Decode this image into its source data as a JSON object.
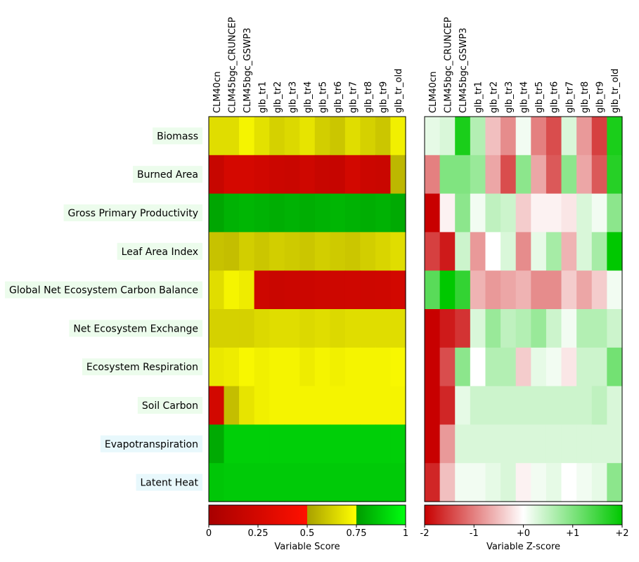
{
  "chart_data": [
    {
      "type": "heatmap",
      "title": "",
      "models": [
        "CLM40cn",
        "CLM45bgc_CRUNCEP",
        "CLM45bgc_GSWP3",
        "glb_tr1",
        "glb_tr2",
        "glb_tr3",
        "glb_tr4",
        "glb_tr5",
        "glb_tr6",
        "glb_tr7",
        "glb_tr8",
        "glb_tr9",
        "glb_tr_old"
      ],
      "variables": [
        "Biomass",
        "Burned Area",
        "Gross Primary Productivity",
        "Leaf Area Index",
        "Global Net Ecosystem Carbon Balance",
        "Net Ecosystem Exchange",
        "Ecosystem Respiration",
        "Soil Carbon",
        "Evapotranspiration",
        "Latent Heat"
      ],
      "variable_colors": [
        "#ecfcec",
        "#ecfcec",
        "#ecfcec",
        "#ecfcec",
        "#ecfcec",
        "#ecfcec",
        "#ecfcec",
        "#ecfcec",
        "#e8f8fc",
        "#e8f8fc"
      ],
      "values": [
        [
          0.66,
          0.66,
          0.72,
          0.67,
          0.63,
          0.65,
          0.68,
          0.62,
          0.6,
          0.66,
          0.63,
          0.6,
          0.71
        ],
        [
          0.18,
          0.25,
          0.25,
          0.23,
          0.2,
          0.19,
          0.22,
          0.18,
          0.17,
          0.24,
          0.2,
          0.19,
          0.56
        ],
        [
          0.78,
          0.81,
          0.82,
          0.81,
          0.8,
          0.81,
          0.8,
          0.81,
          0.82,
          0.81,
          0.8,
          0.81,
          0.79
        ],
        [
          0.59,
          0.58,
          0.62,
          0.6,
          0.62,
          0.61,
          0.6,
          0.62,
          0.61,
          0.6,
          0.62,
          0.64,
          0.66
        ],
        [
          0.66,
          0.72,
          0.7,
          0.21,
          0.19,
          0.2,
          0.2,
          0.21,
          0.21,
          0.22,
          0.21,
          0.22,
          0.24
        ],
        [
          0.63,
          0.63,
          0.63,
          0.65,
          0.66,
          0.66,
          0.65,
          0.66,
          0.65,
          0.66,
          0.66,
          0.66,
          0.66
        ],
        [
          0.69,
          0.7,
          0.73,
          0.71,
          0.72,
          0.72,
          0.7,
          0.72,
          0.71,
          0.72,
          0.72,
          0.72,
          0.73
        ],
        [
          0.24,
          0.58,
          0.68,
          0.71,
          0.72,
          0.72,
          0.72,
          0.72,
          0.72,
          0.72,
          0.72,
          0.72,
          0.72
        ],
        [
          0.79,
          0.88,
          0.88,
          0.88,
          0.88,
          0.88,
          0.88,
          0.88,
          0.88,
          0.88,
          0.88,
          0.88,
          0.88
        ],
        [
          0.86,
          0.87,
          0.87,
          0.87,
          0.87,
          0.87,
          0.87,
          0.87,
          0.87,
          0.87,
          0.87,
          0.87,
          0.87
        ]
      ],
      "colorbar": {
        "ticks": [
          "0",
          "0.25",
          "0.5",
          "0.75",
          "1"
        ],
        "label": "Variable Score",
        "range": [
          0,
          1
        ]
      }
    },
    {
      "type": "heatmap",
      "title": "",
      "models": [
        "CLM40cn",
        "CLM45bgc_CRUNCEP",
        "CLM45bgc_GSWP3",
        "glb_tr1",
        "glb_tr2",
        "glb_tr3",
        "glb_tr4",
        "glb_tr5",
        "glb_tr6",
        "glb_tr7",
        "glb_tr8",
        "glb_tr9",
        "glb_tr_old"
      ],
      "variables": [
        "Biomass",
        "Burned Area",
        "Gross Primary Productivity",
        "Leaf Area Index",
        "Global Net Ecosystem Carbon Balance",
        "Net Ecosystem Exchange",
        "Ecosystem Respiration",
        "Soil Carbon",
        "Evapotranspiration",
        "Latent Heat"
      ],
      "values": [
        [
          0.2,
          0.3,
          1.8,
          0.6,
          -0.5,
          -0.9,
          0.1,
          -1.0,
          -1.4,
          0.3,
          -0.8,
          -1.5,
          1.8
        ],
        [
          -1.0,
          1.0,
          1.0,
          0.8,
          -0.7,
          -1.4,
          0.9,
          -0.7,
          -1.3,
          0.9,
          -0.7,
          -1.3,
          1.7
        ],
        [
          -2.0,
          -0.1,
          0.9,
          0.1,
          0.5,
          0.4,
          -0.4,
          -0.1,
          -0.1,
          -0.2,
          0.3,
          0.1,
          0.9
        ],
        [
          -1.5,
          -1.8,
          0.4,
          -0.8,
          0.0,
          0.3,
          -0.9,
          0.2,
          0.7,
          -0.6,
          0.3,
          0.7,
          2.0
        ],
        [
          1.3,
          2.0,
          1.6,
          -0.6,
          -0.8,
          -0.7,
          -0.6,
          -0.9,
          -0.9,
          -0.4,
          -0.7,
          -0.4,
          0.1
        ],
        [
          -2.0,
          -1.8,
          -1.6,
          0.3,
          0.8,
          0.5,
          0.6,
          0.8,
          0.4,
          0.1,
          0.6,
          0.6,
          0.4
        ],
        [
          -2.0,
          -1.4,
          0.9,
          0.0,
          0.6,
          0.6,
          -0.4,
          0.2,
          0.1,
          -0.2,
          0.4,
          0.4,
          1.1
        ],
        [
          -2.0,
          -1.7,
          0.2,
          0.4,
          0.4,
          0.4,
          0.4,
          0.4,
          0.4,
          0.4,
          0.4,
          0.5,
          0.3
        ],
        [
          -2.0,
          -0.8,
          0.3,
          0.3,
          0.3,
          0.3,
          0.3,
          0.3,
          0.3,
          0.3,
          0.3,
          0.3,
          0.3
        ],
        [
          -1.7,
          -0.5,
          0.1,
          0.1,
          0.2,
          0.3,
          -0.1,
          0.1,
          0.2,
          0.0,
          0.1,
          0.2,
          0.9
        ]
      ],
      "colorbar": {
        "ticks": [
          "-2",
          "-1",
          "+0",
          "+1",
          "+2"
        ],
        "label": "Variable Z-score",
        "range": [
          -2,
          2
        ]
      }
    }
  ]
}
